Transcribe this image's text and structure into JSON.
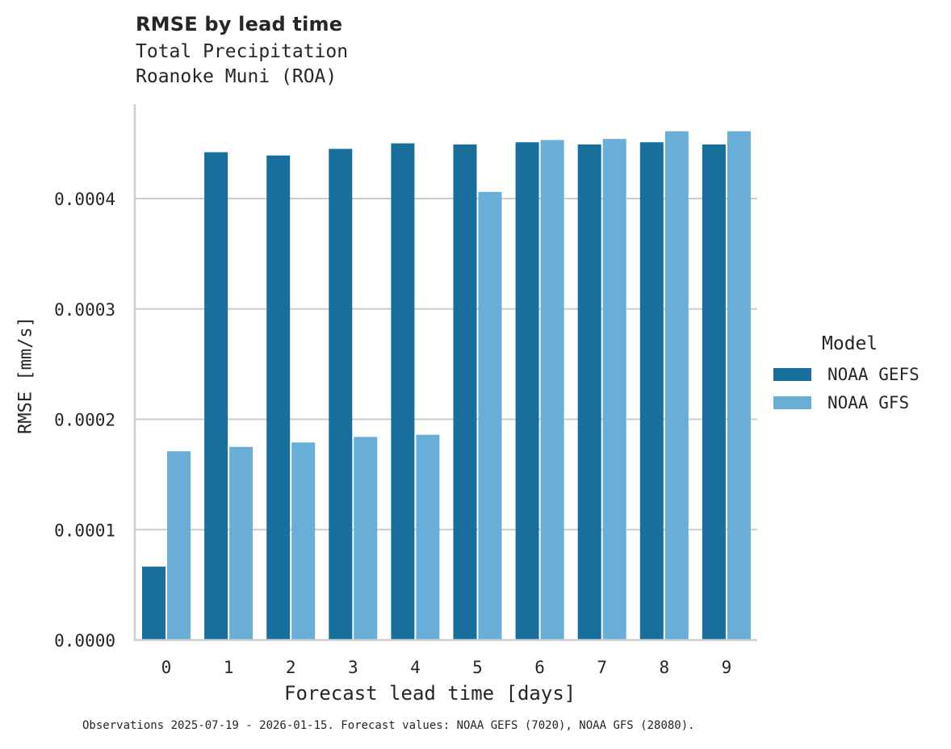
{
  "chart_data": {
    "type": "bar",
    "title": "RMSE by lead time",
    "subtitle": [
      "Total Precipitation",
      "Roanoke Muni (ROA)"
    ],
    "xlabel": "Forecast lead time [days]",
    "ylabel": "RMSE [mm/s]",
    "categories": [
      "0",
      "1",
      "2",
      "3",
      "4",
      "5",
      "6",
      "7",
      "8",
      "9"
    ],
    "series": [
      {
        "name": "NOAA GEFS",
        "color": "#186f9c",
        "values": [
          6.65e-05,
          0.000442,
          0.000439,
          0.000445,
          0.00045,
          0.000449,
          0.000451,
          0.000449,
          0.000451,
          0.000449
        ]
      },
      {
        "name": "NOAA GFS",
        "color": "#68aed6",
        "values": [
          0.000171,
          0.000175,
          0.000179,
          0.000184,
          0.000186,
          0.000406,
          0.000453,
          0.000454,
          0.000461,
          0.000461
        ]
      }
    ],
    "ylim": [
      0,
      0.000485
    ],
    "yticks": [
      "0.0000",
      "0.0001",
      "0.0002",
      "0.0003",
      "0.0004"
    ],
    "ytick_values": [
      0,
      0.0001,
      0.0002,
      0.0003,
      0.0004
    ],
    "grid": "y",
    "legend": {
      "title": "Model",
      "position": "right"
    },
    "footnote": "Observations 2025-07-19 - 2026-01-15. Forecast values: NOAA GEFS (7020), NOAA GFS (28080)."
  }
}
